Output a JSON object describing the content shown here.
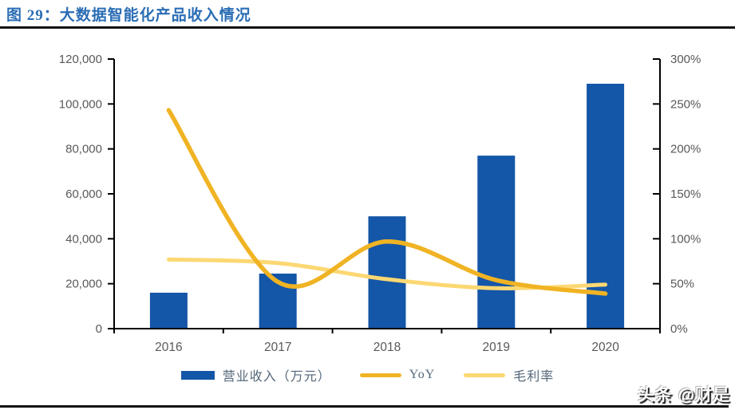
{
  "header": {
    "title": "图 29：大数据智能化产品收入情况"
  },
  "watermark": {
    "text": "头条 @财是"
  },
  "colors": {
    "title": "#2a6db5",
    "bar": "#1456a8",
    "yoy_line": "#f0b323",
    "margin_line": "#fcd873",
    "axis_line": "#000000",
    "axis_text": "#595959",
    "legend_text": "#54677a",
    "rule": "#111111"
  },
  "chart_data": {
    "type": "bar+line combo",
    "title": "大数据智能化产品收入情况",
    "categories": [
      "2016",
      "2017",
      "2018",
      "2019",
      "2020"
    ],
    "series": [
      {
        "name": "营业收入（万元）",
        "type": "bar",
        "axis": "left",
        "values": [
          16000,
          24500,
          50000,
          77000,
          109000
        ]
      },
      {
        "name": "YoY",
        "type": "line",
        "axis": "right",
        "values_percent": [
          243,
          52,
          97,
          54,
          39
        ]
      },
      {
        "name": "毛利率",
        "type": "line",
        "axis": "right",
        "values_percent": [
          77,
          73,
          55,
          45,
          49
        ]
      }
    ],
    "left_axis": {
      "min": 0,
      "max": 120000,
      "step": 20000,
      "tick_labels": [
        "120,000",
        "100,000",
        "80,000",
        "60,000",
        "40,000",
        "20,000",
        "0"
      ]
    },
    "right_axis": {
      "min_percent": 0,
      "max_percent": 300,
      "step_percent": 50,
      "tick_labels": [
        "300%",
        "250%",
        "200%",
        "150%",
        "100%",
        "50%",
        "0%"
      ]
    },
    "grid": false,
    "legend_position": "bottom",
    "line_style": "smooth"
  }
}
